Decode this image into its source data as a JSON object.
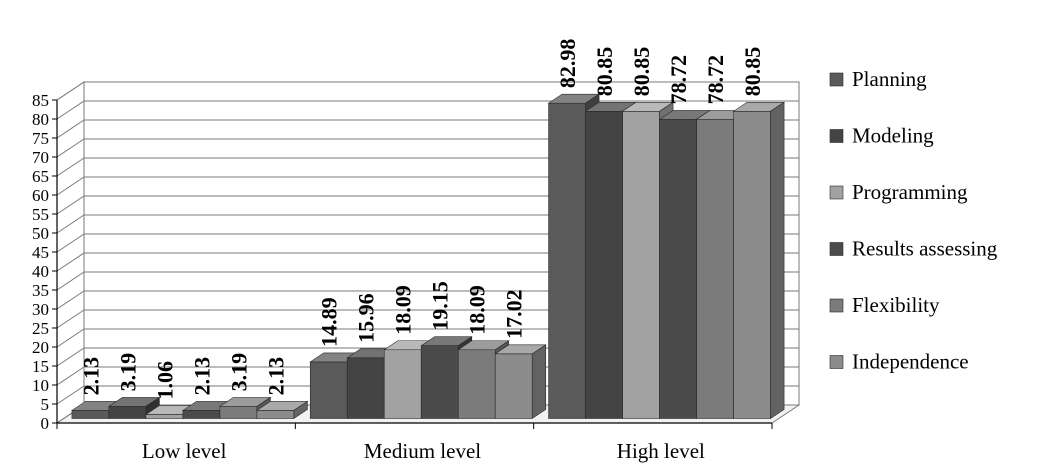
{
  "chart_data": {
    "type": "bar",
    "categories": [
      "Low level",
      "Medium level",
      "High level"
    ],
    "series": [
      {
        "name": "Planning",
        "values": [
          2.13,
          14.89,
          82.98
        ],
        "color": "#5a5a5a"
      },
      {
        "name": "Modeling",
        "values": [
          3.19,
          15.96,
          80.85
        ],
        "color": "#444444"
      },
      {
        "name": "Programming",
        "values": [
          1.06,
          18.09,
          80.85
        ],
        "color": "#a2a2a2"
      },
      {
        "name": "Results assessing",
        "values": [
          2.13,
          19.15,
          78.72
        ],
        "color": "#4b4b4b"
      },
      {
        "name": "Flexibility",
        "values": [
          3.19,
          18.09,
          78.72
        ],
        "color": "#7b7b7b"
      },
      {
        "name": "Independence",
        "values": [
          2.13,
          17.02,
          80.85
        ],
        "color": "#8c8c8c"
      }
    ],
    "yticks": [
      0,
      5,
      10,
      15,
      20,
      25,
      30,
      35,
      40,
      45,
      50,
      55,
      60,
      65,
      70,
      75,
      80,
      85
    ],
    "ylim": [
      0,
      85
    ],
    "grid": true,
    "legend": "right",
    "style": "3d-clustered-column"
  }
}
